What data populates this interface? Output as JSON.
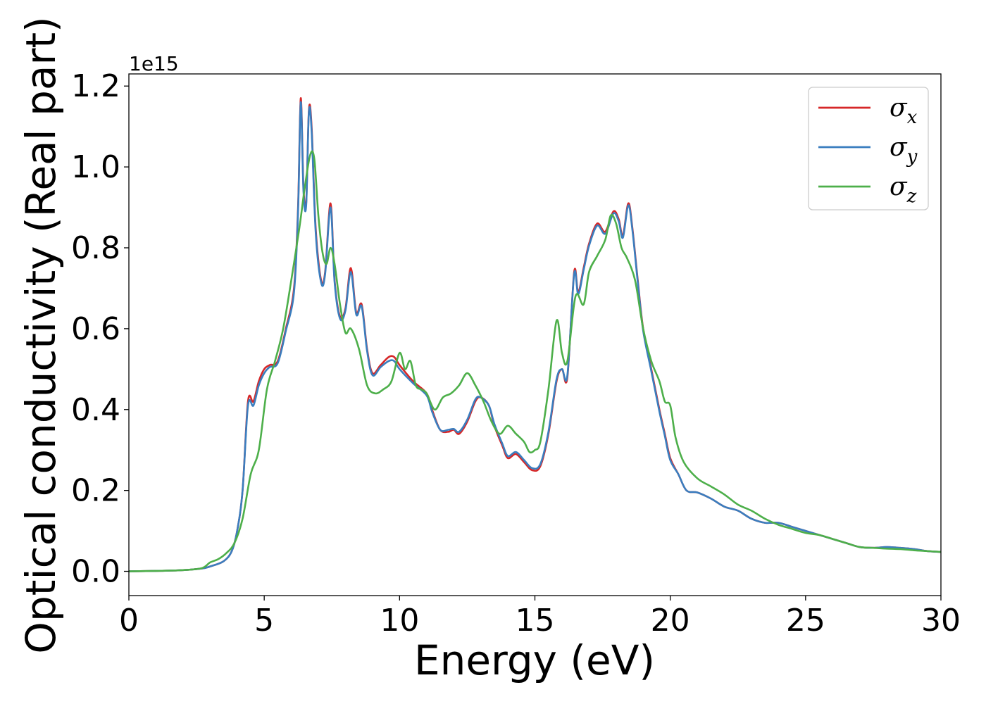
{
  "chart_data": {
    "type": "line",
    "title": "",
    "xlabel": "Energy (eV)",
    "ylabel": "Optical conductivity (Real part)",
    "y_offset_label": "1e15",
    "xlim": [
      0,
      30
    ],
    "ylim": [
      -0.06,
      1.23
    ],
    "x_ticks": [
      0,
      5,
      10,
      15,
      20,
      25,
      30
    ],
    "x_tick_labels": [
      "0",
      "5",
      "10",
      "15",
      "20",
      "25",
      "30"
    ],
    "y_ticks": [
      0.0,
      0.2,
      0.4,
      0.6,
      0.8,
      1.0,
      1.2
    ],
    "y_tick_labels": [
      "0.0",
      "0.2",
      "0.4",
      "0.6",
      "0.8",
      "1.0",
      "1.2"
    ],
    "grid": false,
    "legend_position": "top-right",
    "legend": [
      {
        "symbol": "σ",
        "sub": "x",
        "color": "#d62728"
      },
      {
        "symbol": "σ",
        "sub": "y",
        "color": "#3a7ebf"
      },
      {
        "symbol": "σ",
        "sub": "z",
        "color": "#4daf4a"
      }
    ],
    "series": [
      {
        "color": "#d62728",
        "x": [
          0,
          1,
          2,
          2.7,
          3,
          3.5,
          3.8,
          4,
          4.2,
          4.4,
          4.6,
          4.8,
          5,
          5.2,
          5.5,
          5.8,
          6.1,
          6.25,
          6.35,
          6.45,
          6.55,
          6.65,
          6.75,
          6.9,
          7.1,
          7.25,
          7.45,
          7.6,
          7.8,
          8,
          8.2,
          8.4,
          8.6,
          8.8,
          9,
          9.3,
          9.6,
          9.8,
          10,
          10.5,
          11,
          11.2,
          11.5,
          11.8,
          12,
          12.2,
          12.5,
          12.8,
          13,
          13.3,
          13.5,
          13.8,
          14,
          14.3,
          14.6,
          14.9,
          15.2,
          15.5,
          15.8,
          16,
          16.2,
          16.45,
          16.6,
          16.8,
          17,
          17.3,
          17.6,
          17.9,
          18.1,
          18.25,
          18.45,
          18.6,
          18.8,
          19,
          19.3,
          19.6,
          19.8,
          20,
          20.3,
          20.6,
          21,
          21.5,
          22,
          22.5,
          23,
          23.5,
          24,
          24.5,
          25,
          25.5,
          26,
          26.5,
          27,
          27.5,
          28,
          28.5,
          29,
          29.5,
          30
        ],
        "y": [
          0,
          0.001,
          0.003,
          0.007,
          0.012,
          0.025,
          0.05,
          0.1,
          0.2,
          0.42,
          0.42,
          0.47,
          0.5,
          0.51,
          0.52,
          0.6,
          0.7,
          0.9,
          1.17,
          0.95,
          0.91,
          1.14,
          1.1,
          0.85,
          0.72,
          0.74,
          0.91,
          0.72,
          0.63,
          0.65,
          0.75,
          0.64,
          0.66,
          0.55,
          0.49,
          0.51,
          0.53,
          0.53,
          0.51,
          0.47,
          0.44,
          0.4,
          0.35,
          0.345,
          0.35,
          0.34,
          0.37,
          0.42,
          0.43,
          0.41,
          0.36,
          0.31,
          0.28,
          0.29,
          0.27,
          0.25,
          0.26,
          0.34,
          0.47,
          0.5,
          0.48,
          0.74,
          0.69,
          0.75,
          0.81,
          0.86,
          0.84,
          0.89,
          0.87,
          0.83,
          0.91,
          0.85,
          0.72,
          0.6,
          0.5,
          0.4,
          0.34,
          0.28,
          0.24,
          0.2,
          0.195,
          0.18,
          0.16,
          0.15,
          0.13,
          0.12,
          0.12,
          0.11,
          0.1,
          0.09,
          0.08,
          0.07,
          0.06,
          0.058,
          0.06,
          0.058,
          0.055,
          0.05,
          0.048
        ]
      },
      {
        "color": "#3a7ebf",
        "x": [
          0,
          1,
          2,
          2.7,
          3,
          3.5,
          3.8,
          4,
          4.2,
          4.4,
          4.6,
          4.8,
          5,
          5.2,
          5.5,
          5.8,
          6.1,
          6.25,
          6.35,
          6.45,
          6.55,
          6.65,
          6.75,
          6.9,
          7.1,
          7.25,
          7.45,
          7.6,
          7.8,
          8,
          8.2,
          8.4,
          8.6,
          8.8,
          9,
          9.3,
          9.6,
          9.8,
          10,
          10.5,
          11,
          11.2,
          11.5,
          11.8,
          12,
          12.2,
          12.5,
          12.8,
          13,
          13.3,
          13.5,
          13.8,
          14,
          14.3,
          14.6,
          14.9,
          15.2,
          15.5,
          15.8,
          16,
          16.2,
          16.45,
          16.6,
          16.8,
          17,
          17.3,
          17.6,
          17.9,
          18.1,
          18.25,
          18.45,
          18.6,
          18.8,
          19,
          19.3,
          19.6,
          19.8,
          20,
          20.3,
          20.6,
          21,
          21.5,
          22,
          22.5,
          23,
          23.5,
          24,
          24.5,
          25,
          25.5,
          26,
          26.5,
          27,
          27.5,
          28,
          28.5,
          29,
          29.5,
          30
        ],
        "y": [
          0,
          0.001,
          0.003,
          0.007,
          0.012,
          0.025,
          0.05,
          0.1,
          0.2,
          0.41,
          0.41,
          0.46,
          0.49,
          0.505,
          0.515,
          0.595,
          0.69,
          0.89,
          1.16,
          0.94,
          0.905,
          1.135,
          1.09,
          0.84,
          0.715,
          0.735,
          0.9,
          0.715,
          0.625,
          0.645,
          0.74,
          0.635,
          0.655,
          0.545,
          0.485,
          0.505,
          0.52,
          0.52,
          0.5,
          0.465,
          0.435,
          0.395,
          0.35,
          0.35,
          0.352,
          0.345,
          0.375,
          0.425,
          0.43,
          0.41,
          0.365,
          0.315,
          0.285,
          0.295,
          0.275,
          0.255,
          0.265,
          0.345,
          0.475,
          0.5,
          0.485,
          0.735,
          0.685,
          0.745,
          0.805,
          0.855,
          0.835,
          0.885,
          0.865,
          0.825,
          0.905,
          0.845,
          0.715,
          0.595,
          0.495,
          0.395,
          0.335,
          0.275,
          0.24,
          0.2,
          0.195,
          0.18,
          0.16,
          0.15,
          0.13,
          0.12,
          0.12,
          0.11,
          0.1,
          0.09,
          0.08,
          0.07,
          0.06,
          0.058,
          0.06,
          0.058,
          0.055,
          0.05,
          0.048
        ]
      },
      {
        "color": "#4daf4a",
        "x": [
          0,
          1,
          2,
          2.7,
          3,
          3.3,
          3.6,
          3.9,
          4.2,
          4.5,
          4.8,
          5.1,
          5.4,
          5.7,
          6,
          6.3,
          6.5,
          6.7,
          6.85,
          7,
          7.15,
          7.3,
          7.45,
          7.6,
          7.8,
          8,
          8.2,
          8.5,
          8.8,
          9.1,
          9.4,
          9.7,
          10,
          10.2,
          10.4,
          10.6,
          10.8,
          11,
          11.3,
          11.6,
          11.9,
          12.2,
          12.5,
          12.8,
          13.1,
          13.4,
          13.7,
          14,
          14.3,
          14.6,
          14.8,
          15,
          15.2,
          15.5,
          15.8,
          16,
          16.2,
          16.5,
          16.8,
          17,
          17.3,
          17.6,
          17.8,
          18,
          18.2,
          18.4,
          18.7,
          19,
          19.3,
          19.6,
          19.8,
          20,
          20.2,
          20.5,
          21,
          21.5,
          22,
          22.5,
          23,
          23.5,
          24,
          24.5,
          25,
          25.5,
          26,
          26.5,
          27,
          27.5,
          28,
          28.5,
          29,
          29.5,
          30
        ],
        "y": [
          0,
          0.001,
          0.003,
          0.008,
          0.022,
          0.03,
          0.045,
          0.07,
          0.13,
          0.24,
          0.3,
          0.45,
          0.52,
          0.6,
          0.72,
          0.85,
          0.95,
          1.03,
          1.02,
          0.88,
          0.79,
          0.76,
          0.8,
          0.76,
          0.66,
          0.59,
          0.6,
          0.55,
          0.46,
          0.44,
          0.45,
          0.47,
          0.54,
          0.5,
          0.52,
          0.46,
          0.45,
          0.44,
          0.4,
          0.43,
          0.44,
          0.46,
          0.49,
          0.46,
          0.42,
          0.37,
          0.34,
          0.36,
          0.34,
          0.32,
          0.295,
          0.3,
          0.32,
          0.45,
          0.62,
          0.54,
          0.52,
          0.68,
          0.66,
          0.74,
          0.78,
          0.82,
          0.88,
          0.86,
          0.8,
          0.775,
          0.72,
          0.6,
          0.52,
          0.47,
          0.42,
          0.41,
          0.33,
          0.27,
          0.23,
          0.21,
          0.19,
          0.165,
          0.15,
          0.13,
          0.115,
          0.105,
          0.095,
          0.09,
          0.08,
          0.07,
          0.06,
          0.058,
          0.056,
          0.055,
          0.052,
          0.05,
          0.048
        ]
      }
    ]
  }
}
